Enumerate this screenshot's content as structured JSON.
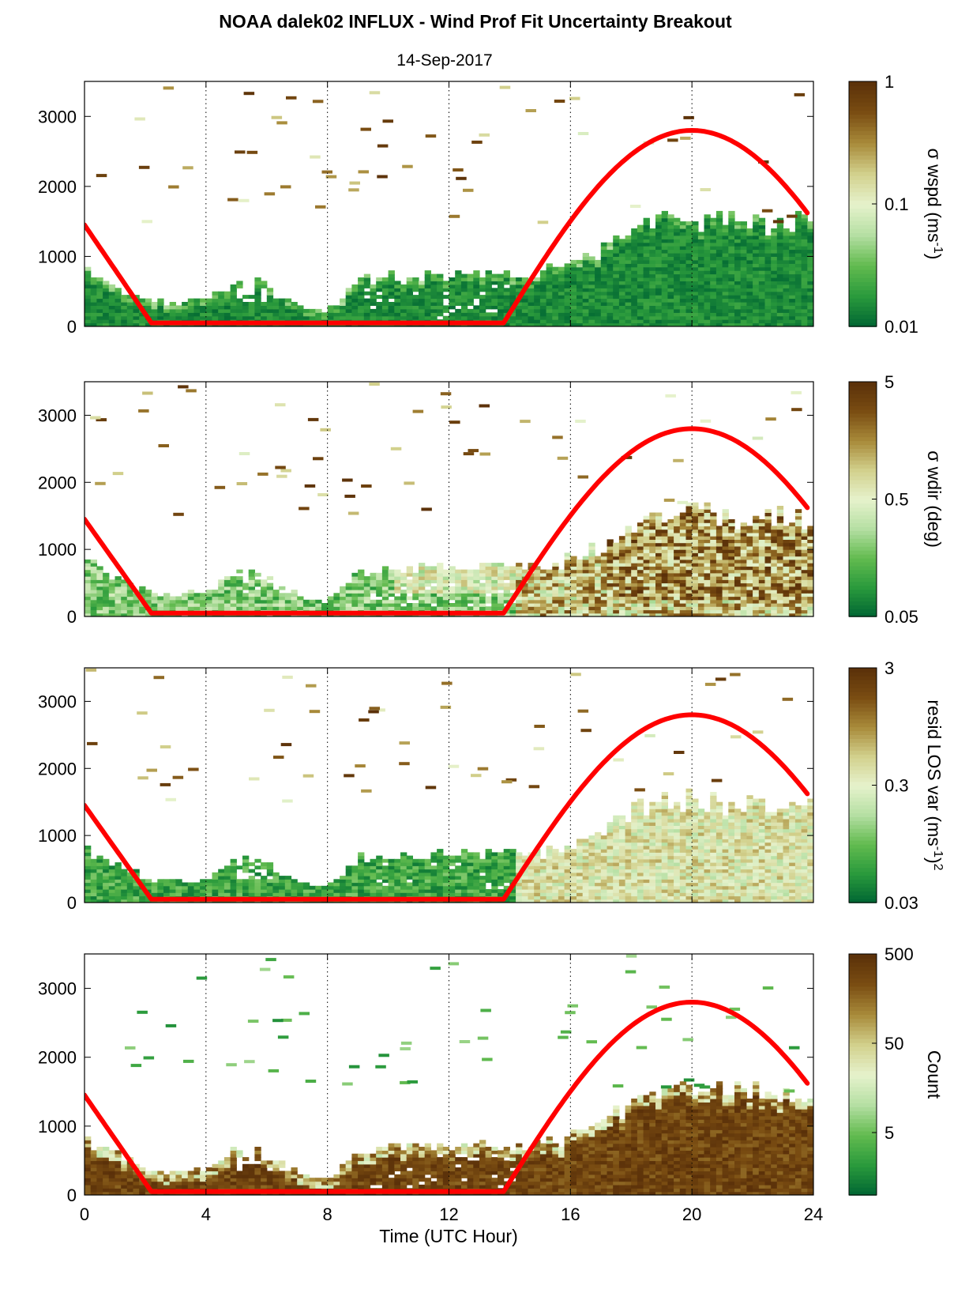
{
  "title": "NOAA dalek02 INFLUX - Wind Prof Fit Uncertainty Breakout",
  "subtitle": "14-Sep-2017",
  "xlabel": "Time (UTC Hour)",
  "colors": {
    "sun_curve": "#ff0000",
    "colormap": [
      "#006633",
      "#2a9a3c",
      "#62bb4f",
      "#b5dfa3",
      "#e6f2cc",
      "#d2d08c",
      "#a88a3a",
      "#7a4d12",
      "#5a3009"
    ]
  },
  "chart_data": [
    {
      "type": "heatmap",
      "panel": "sigma_wspd",
      "x": {
        "range": [
          0,
          24
        ],
        "ticks": [
          0,
          4,
          8,
          12,
          16,
          20,
          24
        ]
      },
      "y": {
        "range": [
          0,
          3500
        ],
        "ticks": [
          0,
          1000,
          2000,
          3000
        ]
      },
      "grid": "vertical dotted at 4, 8, 12, 16, 20",
      "colorbar": {
        "label": "σ wspd (ms-1)",
        "scale": "log",
        "range": [
          0.01,
          1
        ],
        "tick_labels": [
          "1",
          "0.1",
          "0.01"
        ],
        "tick_values": [
          1,
          0.1,
          0.01
        ]
      },
      "column_top_heights": {
        "time": [
          0,
          1,
          2,
          3,
          4,
          5,
          6,
          7,
          8,
          9,
          10,
          11,
          12,
          13,
          14,
          15,
          16,
          17,
          18,
          19,
          20,
          21,
          22,
          23,
          23.8
        ],
        "height": [
          800,
          600,
          350,
          300,
          350,
          650,
          600,
          300,
          200,
          650,
          700,
          700,
          720,
          720,
          720,
          750,
          850,
          1050,
          1350,
          1520,
          1550,
          1500,
          1500,
          1520,
          1480
        ]
      },
      "sun_elevation_curve": {
        "time": [
          0,
          2.2,
          13.8,
          20,
          23.8
        ],
        "height": [
          1450,
          50,
          50,
          2800,
          1650
        ]
      }
    },
    {
      "type": "heatmap",
      "panel": "sigma_wdir",
      "x": {
        "range": [
          0,
          24
        ],
        "ticks": [
          0,
          4,
          8,
          12,
          16,
          20,
          24
        ]
      },
      "y": {
        "range": [
          0,
          3500
        ],
        "ticks": [
          0,
          1000,
          2000,
          3000
        ]
      },
      "grid": "vertical dotted at 4, 8, 12, 16, 20",
      "colorbar": {
        "label": "σ wdir (deg)",
        "scale": "log",
        "range": [
          0.05,
          5
        ],
        "tick_labels": [
          "5",
          "0.5",
          "0.05"
        ],
        "tick_values": [
          5,
          0.5,
          0.05
        ]
      },
      "column_top_heights": {
        "time": [
          0,
          1,
          2,
          3,
          4,
          5,
          6,
          7,
          8,
          9,
          10,
          11,
          12,
          13,
          14,
          15,
          16,
          17,
          18,
          19,
          20,
          21,
          22,
          23,
          23.8
        ],
        "height": [
          800,
          600,
          350,
          300,
          350,
          650,
          600,
          300,
          200,
          650,
          700,
          700,
          720,
          720,
          720,
          750,
          850,
          1050,
          1350,
          1520,
          1550,
          1500,
          1500,
          1520,
          1480
        ]
      },
      "sun_elevation_curve": {
        "time": [
          0,
          2.2,
          13.8,
          20,
          23.8
        ],
        "height": [
          1450,
          50,
          50,
          2800,
          1650
        ]
      }
    },
    {
      "type": "heatmap",
      "panel": "resid_los_var",
      "x": {
        "range": [
          0,
          24
        ],
        "ticks": [
          0,
          4,
          8,
          12,
          16,
          20,
          24
        ]
      },
      "y": {
        "range": [
          0,
          3500
        ],
        "ticks": [
          0,
          1000,
          2000,
          3000
        ]
      },
      "grid": "vertical dotted at 4, 8, 12, 16, 20",
      "colorbar": {
        "label": "resid LOS var (ms-1)2",
        "scale": "log",
        "range": [
          0.03,
          3
        ],
        "tick_labels": [
          "3",
          "0.3",
          "0.03"
        ],
        "tick_values": [
          3,
          0.3,
          0.03
        ]
      },
      "column_top_heights": {
        "time": [
          0,
          1,
          2,
          3,
          4,
          5,
          6,
          7,
          8,
          9,
          10,
          11,
          12,
          13,
          14,
          15,
          16,
          17,
          18,
          19,
          20,
          21,
          22,
          23,
          23.8
        ],
        "height": [
          800,
          600,
          350,
          300,
          350,
          650,
          600,
          300,
          200,
          650,
          700,
          700,
          720,
          720,
          720,
          750,
          850,
          1050,
          1350,
          1520,
          1550,
          1500,
          1500,
          1520,
          1480
        ]
      },
      "sun_elevation_curve": {
        "time": [
          0,
          2.2,
          13.8,
          20,
          23.8
        ],
        "height": [
          1450,
          50,
          50,
          2800,
          1650
        ]
      }
    },
    {
      "type": "heatmap",
      "panel": "count",
      "x": {
        "range": [
          0,
          24
        ],
        "ticks": [
          0,
          4,
          8,
          12,
          16,
          20,
          24
        ]
      },
      "y": {
        "range": [
          0,
          3500
        ],
        "ticks": [
          0,
          1000,
          2000,
          3000
        ]
      },
      "grid": "vertical dotted at 4, 8, 12, 16, 20",
      "colorbar": {
        "label": "Count",
        "scale": "log",
        "range": [
          1,
          500
        ],
        "tick_labels": [
          "500",
          "50",
          "5"
        ],
        "tick_values": [
          500,
          50,
          5
        ]
      },
      "column_top_heights": {
        "time": [
          0,
          1,
          2,
          3,
          4,
          5,
          6,
          7,
          8,
          9,
          10,
          11,
          12,
          13,
          14,
          15,
          16,
          17,
          18,
          19,
          20,
          21,
          22,
          23,
          23.8
        ],
        "height": [
          800,
          600,
          350,
          300,
          350,
          650,
          600,
          300,
          200,
          650,
          700,
          700,
          720,
          720,
          720,
          750,
          850,
          1050,
          1350,
          1520,
          1550,
          1500,
          1500,
          1520,
          1480
        ]
      },
      "sun_elevation_curve": {
        "time": [
          0,
          2.2,
          13.8,
          20,
          23.8
        ],
        "height": [
          1450,
          50,
          50,
          2800,
          1650
        ]
      }
    }
  ]
}
